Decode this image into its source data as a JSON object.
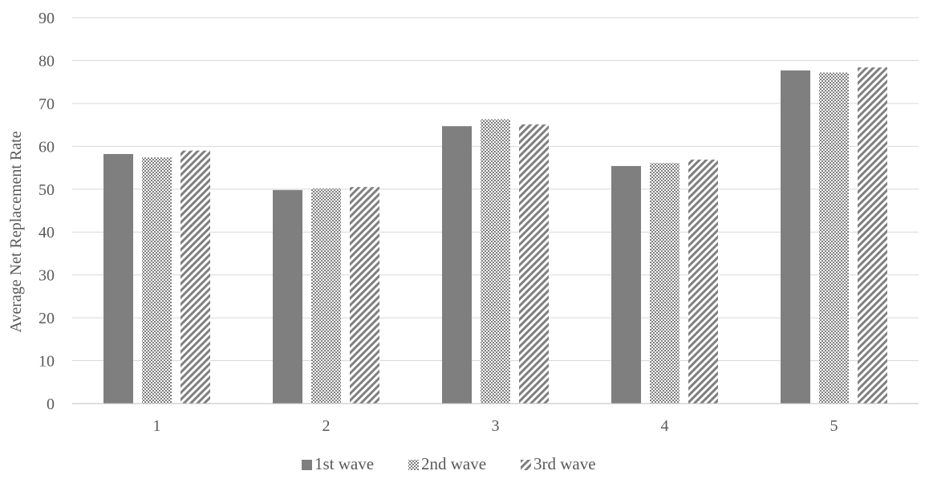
{
  "chart_data": {
    "type": "bar",
    "title": "",
    "xlabel": "",
    "ylabel": "Average Net Replacement Rate",
    "ylim": [
      0,
      90
    ],
    "yticks": [
      0,
      10,
      20,
      30,
      40,
      50,
      60,
      70,
      80,
      90
    ],
    "grid": true,
    "legend_position": "bottom",
    "categories": [
      "1",
      "2",
      "3",
      "4",
      "5"
    ],
    "series": [
      {
        "name": "1st wave",
        "pattern": "solid",
        "color": "#7f7f7f",
        "values": [
          58.2,
          49.8,
          64.7,
          55.4,
          77.7
        ]
      },
      {
        "name": "2nd wave",
        "pattern": "dots",
        "color": "#7f7f7f",
        "values": [
          57.4,
          50.2,
          66.3,
          56.1,
          77.2
        ]
      },
      {
        "name": "3rd wave",
        "pattern": "diagonal",
        "color": "#7f7f7f",
        "values": [
          59.0,
          50.5,
          65.1,
          56.9,
          78.4
        ]
      }
    ]
  }
}
